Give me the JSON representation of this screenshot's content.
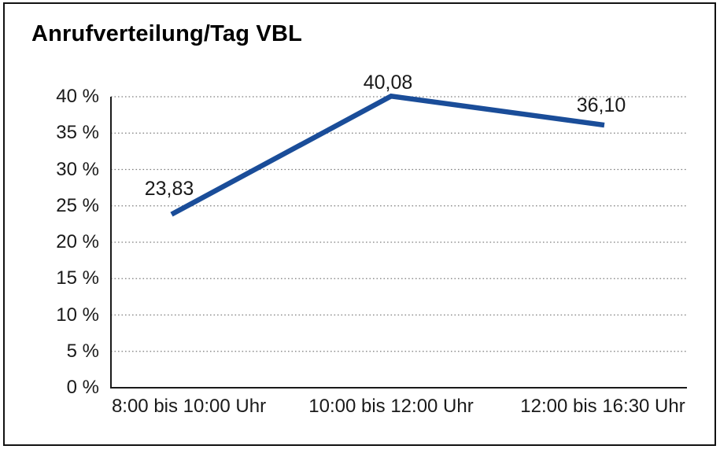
{
  "chart_data": {
    "type": "line",
    "title": "Anrufverteilung/Tag VBL",
    "categories": [
      "8:00 bis 10:00 Uhr",
      "10:00 bis 12:00 Uhr",
      "12:00 bis 16:30 Uhr"
    ],
    "values": [
      23.83,
      40.08,
      36.1
    ],
    "point_labels": [
      "23,83",
      "40,08",
      "36,10"
    ],
    "y_ticks": [
      {
        "value": 0,
        "label": "0 %"
      },
      {
        "value": 5,
        "label": "5 %"
      },
      {
        "value": 10,
        "label": "10 %"
      },
      {
        "value": 15,
        "label": "15 %"
      },
      {
        "value": 20,
        "label": "20 %"
      },
      {
        "value": 25,
        "label": "25 %"
      },
      {
        "value": 30,
        "label": "30 %"
      },
      {
        "value": 35,
        "label": "35 %"
      },
      {
        "value": 40,
        "label": "40 %"
      }
    ],
    "ylim": [
      0,
      40
    ],
    "xlabel": "",
    "ylabel": "",
    "grid": "horizontal-dotted",
    "legend": "none",
    "line_color": "#1A4D99",
    "axis_color": "#1A1A1A",
    "gridline_color": "#7F7F7F",
    "text_color": "#1A1A1A",
    "background_color": "#FFFFFF",
    "border_color": "#121212"
  }
}
